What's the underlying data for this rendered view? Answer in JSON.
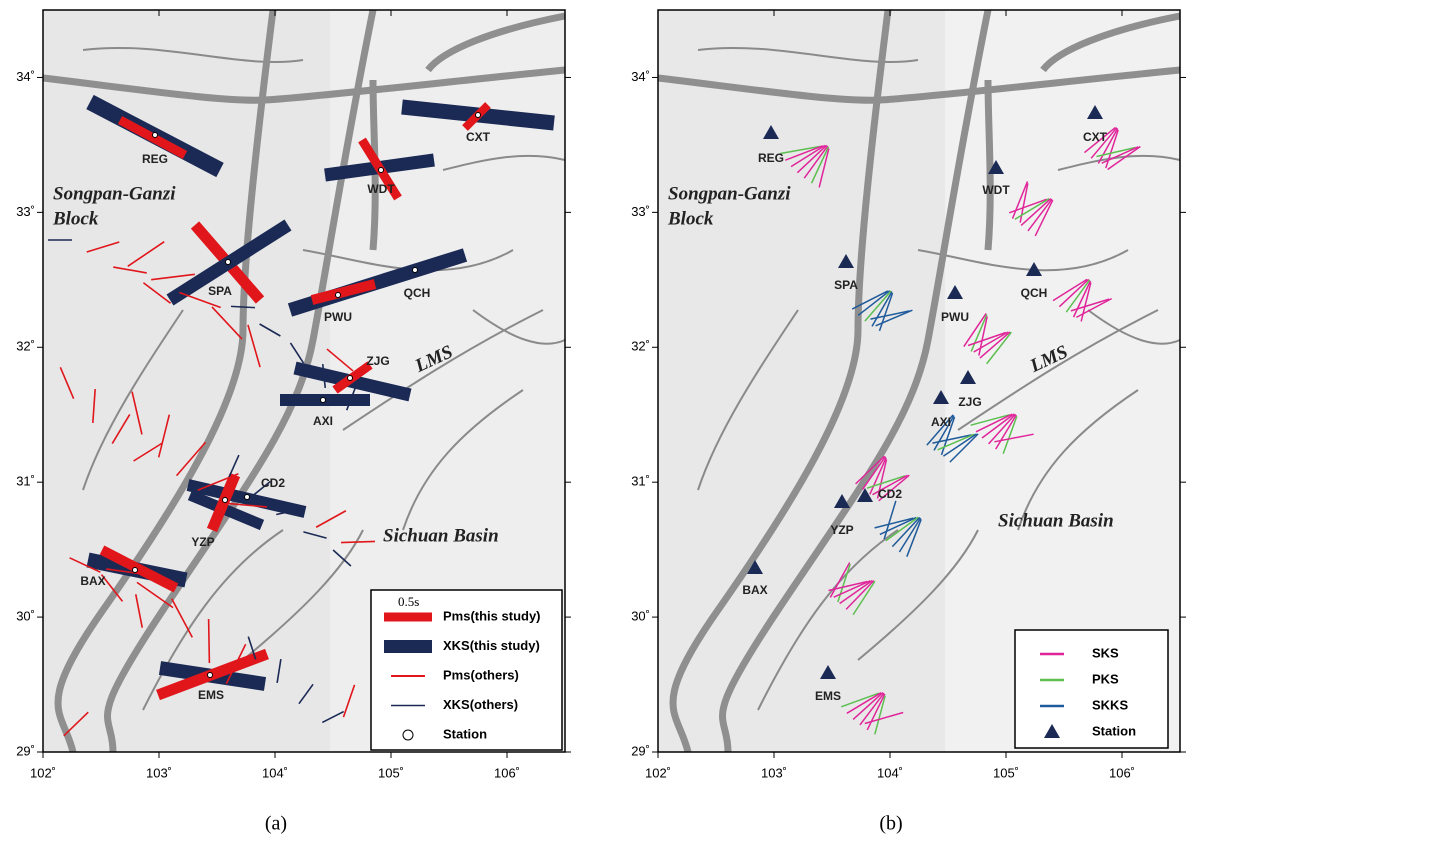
{
  "lon_range": [
    102,
    106.5
  ],
  "lat_range": [
    29,
    34.5
  ],
  "lon_ticks": [
    {
      "value": 102,
      "label": "102˚"
    },
    {
      "value": 103,
      "label": "103˚"
    },
    {
      "value": 104,
      "label": "104˚"
    },
    {
      "value": 105,
      "label": "105˚"
    },
    {
      "value": 106,
      "label": "106˚"
    }
  ],
  "lat_ticks": [
    {
      "value": 29,
      "label": "29˚"
    },
    {
      "value": 30,
      "label": "30˚"
    },
    {
      "value": 31,
      "label": "31˚"
    },
    {
      "value": 32,
      "label": "32˚"
    },
    {
      "value": 33,
      "label": "33˚"
    },
    {
      "value": 34,
      "label": "34˚"
    }
  ],
  "regions": [
    "Songpan-Ganzi",
    "Block",
    "LMS",
    "Sichuan Basin"
  ],
  "stations": [
    "REG",
    "WDT",
    "CXT",
    "SPA",
    "QCH",
    "PWU",
    "ZJG",
    "AXI",
    "CD2",
    "YZP",
    "BAX",
    "EMS"
  ],
  "panels": [
    {
      "caption": "(a)",
      "legend": {
        "scale": "0.5s",
        "items": [
          "Pms(this study)",
          "XKS(this study)",
          "Pms(others)",
          "XKS(others)",
          "Station"
        ]
      }
    },
    {
      "caption": "(b)",
      "legend": {
        "items": [
          "SKS",
          "PKS",
          "SKKS",
          "Station"
        ]
      }
    }
  ]
}
